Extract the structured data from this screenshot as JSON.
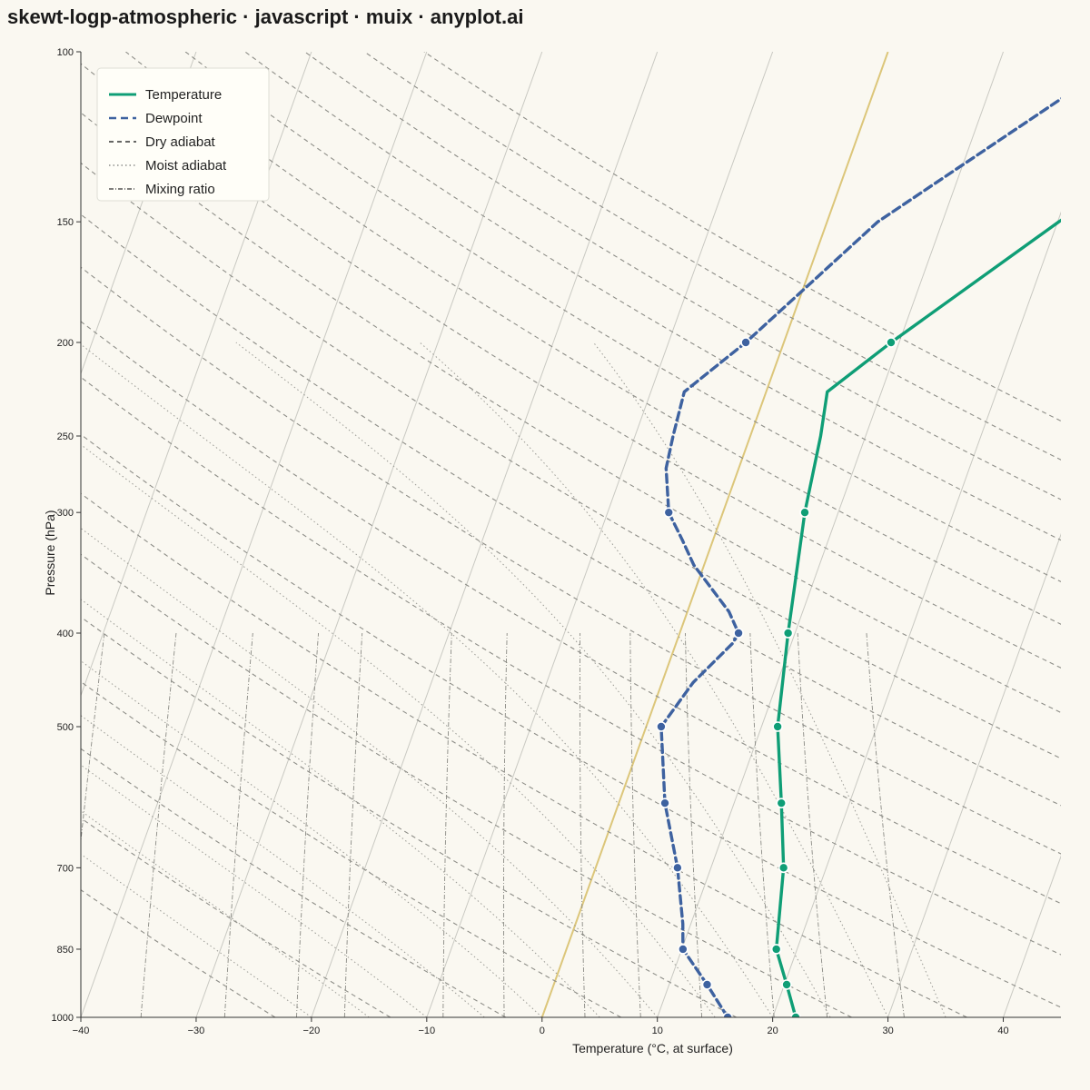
{
  "title": "skewt-logp-atmospheric · javascript · muix · anyplot.ai",
  "colors": {
    "background": "#FAF8F1",
    "temperature": "#0F9E76",
    "dewpoint": "#3E62A0",
    "isotherm": "#BDBDB7",
    "zero_isotherm": "#DCC67A",
    "dry_adiabat": "#8E8E88",
    "moist_adiabat": "#9A9A94",
    "mixing_ratio": "#8A8A84",
    "axis": "#333333"
  },
  "chart_data": {
    "type": "line",
    "title": "skewt-logp-atmospheric · javascript · muix · anyplot.ai",
    "xlabel": "Temperature (°C, at surface)",
    "ylabel": "Pressure (hPa)",
    "xlim": [
      -40,
      45
    ],
    "ylim": [
      1000,
      100
    ],
    "y_scale": "log",
    "x_ticks": [
      -40,
      -30,
      -20,
      -10,
      0,
      10,
      20,
      30,
      40
    ],
    "y_ticks": [
      1000,
      850,
      700,
      500,
      400,
      300,
      250,
      200,
      150,
      100
    ],
    "x_tick_labels": [
      "−40",
      "−30",
      "−20",
      "−10",
      "0",
      "10",
      "20",
      "30",
      "40"
    ],
    "y_tick_labels": [
      "1000",
      "850",
      "700",
      "500",
      "400",
      "300",
      "250",
      "200",
      "150",
      "100"
    ],
    "grid": true,
    "legend_position": "top-left",
    "legend": [
      {
        "label": "Temperature",
        "style": "solid"
      },
      {
        "label": "Dewpoint",
        "style": "dashed"
      },
      {
        "label": "Dry adiabat",
        "style": "dashed-thin"
      },
      {
        "label": "Moist adiabat",
        "style": "dotted"
      },
      {
        "label": "Mixing ratio",
        "style": "dashdot"
      }
    ],
    "series": [
      {
        "name": "Temperature",
        "line": [
          [
            1000,
            22
          ],
          [
            925,
            20.2
          ],
          [
            850,
            18.2
          ],
          [
            700,
            16.3
          ],
          [
            600,
            14.1
          ],
          [
            500,
            11.4
          ],
          [
            400,
            9.4
          ],
          [
            300,
            7.1
          ],
          [
            250,
            6.1
          ],
          [
            225,
            5.3
          ],
          [
            200,
            9.3
          ],
          [
            150,
            20.1
          ],
          [
            100,
            36.9
          ]
        ],
        "markers": [
          [
            1000,
            22
          ],
          [
            925,
            20.2
          ],
          [
            850,
            18.2
          ],
          [
            700,
            16.3
          ],
          [
            600,
            14.1
          ],
          [
            500,
            11.4
          ],
          [
            400,
            9.4
          ],
          [
            300,
            7.1
          ],
          [
            200,
            9.3
          ]
        ]
      },
      {
        "name": "Dewpoint",
        "line": [
          [
            1000,
            16.1
          ],
          [
            925,
            13.3
          ],
          [
            850,
            10.1
          ],
          [
            800,
            9.3
          ],
          [
            700,
            7.1
          ],
          [
            600,
            4.0
          ],
          [
            500,
            1.3
          ],
          [
            450,
            2.7
          ],
          [
            410,
            4.9
          ],
          [
            400,
            5.1
          ],
          [
            380,
            3.6
          ],
          [
            340,
            -0.9
          ],
          [
            320,
            -2.7
          ],
          [
            300,
            -4.7
          ],
          [
            270,
            -6.3
          ],
          [
            250,
            -6.7
          ],
          [
            225,
            -7.1
          ],
          [
            200,
            -3.3
          ],
          [
            150,
            4.4
          ],
          [
            100,
            21.1
          ]
        ],
        "markers": [
          [
            1000,
            16.1
          ],
          [
            925,
            13.3
          ],
          [
            850,
            10.1
          ],
          [
            700,
            7.1
          ],
          [
            600,
            4.0
          ],
          [
            500,
            1.3
          ],
          [
            400,
            5.1
          ],
          [
            300,
            -4.7
          ],
          [
            200,
            -3.3
          ]
        ]
      }
    ],
    "background_lines": {
      "isotherms_c": [
        -110,
        -100,
        -90,
        -80,
        -70,
        -60,
        -50,
        -40,
        -30,
        -20,
        -10,
        0,
        10,
        20,
        30,
        40
      ],
      "dry_adiabats_theta_k": [
        250,
        260,
        270,
        280,
        290,
        300,
        310,
        320,
        330,
        340,
        350,
        360,
        370,
        380,
        390,
        400,
        410,
        420,
        430,
        440,
        450
      ],
      "moist_adiabats_surface_c": [
        -20,
        -15,
        -10,
        -5,
        0,
        5,
        10,
        15,
        20,
        25,
        30,
        35
      ],
      "mixing_ratios_g_per_kg": [
        0.1,
        0.2,
        0.4,
        0.7,
        1,
        2,
        3,
        5,
        7,
        10,
        15,
        20,
        30
      ]
    }
  }
}
